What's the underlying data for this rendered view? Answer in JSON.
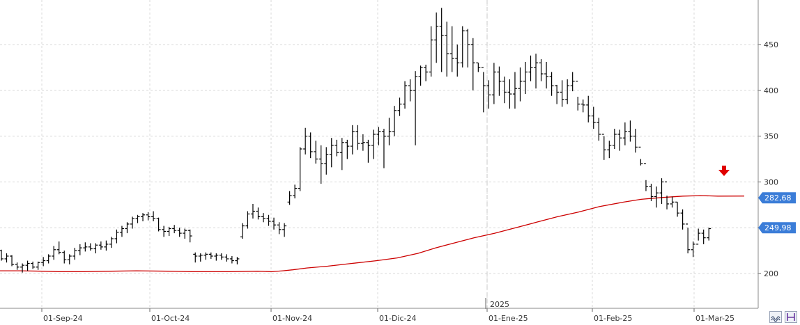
{
  "chart_data": {
    "type": "ohlc-bar",
    "title": "",
    "xlabel": "",
    "ylabel": "",
    "ylim": [
      176,
      500
    ],
    "y_ticks": [
      200,
      250,
      300,
      350,
      400,
      450
    ],
    "grid": true,
    "x_tick_labels": [
      "01-Sep-24",
      "01-Oct-24",
      "01-Nov-24",
      "01-Dic-24",
      "01-Ene-25",
      "01-Feb-25",
      "01-Mar-25"
    ],
    "year_label": "2025",
    "colors": {
      "bars": "#000000",
      "moving_average": "#cc0000",
      "price_tag": "#3b7dd8",
      "marker_arrow": "#e00000",
      "grid": "#d8d8d8"
    },
    "price_tags": [
      {
        "value": "282,68",
        "level": 282.68,
        "series": "moving_average"
      },
      {
        "value": "249,98",
        "level": 249.98,
        "series": "price"
      }
    ],
    "marker": {
      "type": "arrow-down",
      "near_index": 0
    },
    "series": [
      {
        "kind": "ohlc",
        "bars": [
          [
            225,
            226,
            214,
            216
          ],
          [
            216,
            222,
            212,
            219
          ],
          [
            219,
            220,
            208,
            210
          ],
          [
            210,
            212,
            204,
            207
          ],
          [
            207,
            211,
            201,
            209
          ],
          [
            209,
            214,
            203,
            211
          ],
          [
            211,
            213,
            205,
            207
          ],
          [
            207,
            213,
            204,
            212
          ],
          [
            212,
            218,
            208,
            214
          ],
          [
            214,
            221,
            211,
            219
          ],
          [
            219,
            230,
            215,
            226
          ],
          [
            226,
            235,
            221,
            223
          ],
          [
            223,
            225,
            211,
            215
          ],
          [
            215,
            221,
            210,
            219
          ],
          [
            219,
            228,
            215,
            225
          ],
          [
            225,
            232,
            220,
            228
          ],
          [
            228,
            234,
            224,
            229
          ],
          [
            229,
            233,
            225,
            227
          ],
          [
            227,
            233,
            222,
            231
          ],
          [
            231,
            235,
            226,
            229
          ],
          [
            229,
            236,
            225,
            232
          ],
          [
            232,
            240,
            228,
            238
          ],
          [
            238,
            248,
            233,
            245
          ],
          [
            245,
            252,
            240,
            249
          ],
          [
            249,
            256,
            244,
            254
          ],
          [
            254,
            262,
            249,
            260
          ],
          [
            260,
            264,
            255,
            262
          ],
          [
            262,
            266,
            257,
            264
          ],
          [
            264,
            267,
            258,
            262
          ],
          [
            262,
            268,
            257,
            260
          ],
          [
            260,
            261,
            246,
            248
          ],
          [
            248,
            252,
            240,
            246
          ],
          [
            246,
            251,
            241,
            249
          ],
          [
            249,
            253,
            244,
            247
          ],
          [
            247,
            250,
            240,
            244
          ],
          [
            244,
            249,
            238,
            247
          ],
          [
            247,
            248,
            234,
            241
          ],
          [
            221,
            223,
            212,
            219
          ],
          [
            219,
            222,
            213,
            220
          ],
          [
            220,
            223,
            215,
            221
          ],
          [
            221,
            223,
            216,
            219
          ],
          [
            219,
            222,
            214,
            220
          ],
          [
            220,
            222,
            215,
            218
          ],
          [
            218,
            221,
            213,
            216
          ],
          [
            216,
            219,
            211,
            214
          ],
          [
            214,
            218,
            210,
            216
          ],
          [
            240,
            255,
            238,
            252
          ],
          [
            252,
            268,
            249,
            265
          ],
          [
            265,
            276,
            260,
            268
          ],
          [
            268,
            272,
            259,
            262
          ],
          [
            262,
            266,
            256,
            260
          ],
          [
            260,
            264,
            252,
            257
          ],
          [
            257,
            261,
            248,
            253
          ],
          [
            253,
            256,
            243,
            248
          ],
          [
            248,
            255,
            240,
            252
          ],
          [
            278,
            290,
            275,
            285
          ],
          [
            285,
            297,
            282,
            293
          ],
          [
            293,
            338,
            290,
            336
          ],
          [
            336,
            359,
            330,
            350
          ],
          [
            350,
            354,
            326,
            333
          ],
          [
            333,
            345,
            320,
            325
          ],
          [
            325,
            340,
            298,
            320
          ],
          [
            320,
            338,
            308,
            330
          ],
          [
            330,
            348,
            316,
            340
          ],
          [
            340,
            346,
            328,
            332
          ],
          [
            332,
            348,
            313,
            343
          ],
          [
            343,
            346,
            325,
            339
          ],
          [
            339,
            362,
            330,
            355
          ],
          [
            355,
            362,
            335,
            342
          ],
          [
            342,
            352,
            334,
            343
          ],
          [
            343,
            346,
            321,
            340
          ],
          [
            340,
            357,
            325,
            352
          ],
          [
            352,
            360,
            340,
            355
          ],
          [
            355,
            358,
            315,
            350
          ],
          [
            350,
            370,
            340,
            355
          ],
          [
            355,
            383,
            350,
            378
          ],
          [
            378,
            392,
            372,
            385
          ],
          [
            385,
            410,
            380,
            405
          ],
          [
            405,
            412,
            388,
            400
          ],
          [
            400,
            421,
            340,
            415
          ],
          [
            415,
            427,
            405,
            425
          ],
          [
            425,
            428,
            410,
            420
          ],
          [
            420,
            470,
            415,
            455
          ],
          [
            455,
            485,
            430,
            470
          ],
          [
            470,
            490,
            420,
            460
          ],
          [
            460,
            475,
            415,
            440
          ],
          [
            440,
            470,
            420,
            435
          ],
          [
            435,
            450,
            415,
            430
          ],
          [
            430,
            470,
            425,
            465
          ],
          [
            465,
            467,
            425,
            450
          ],
          [
            450,
            457,
            400,
            430
          ],
          [
            430,
            430,
            420,
            425
          ],
          [
            425,
            420,
            376,
            405
          ],
          [
            405,
            411,
            380,
            395
          ],
          [
            395,
            430,
            385,
            420
          ],
          [
            420,
            426,
            394,
            410
          ],
          [
            410,
            415,
            386,
            398
          ],
          [
            398,
            412,
            380,
            396
          ],
          [
            396,
            420,
            380,
            402
          ],
          [
            402,
            425,
            388,
            410
          ],
          [
            410,
            431,
            396,
            420
          ],
          [
            420,
            438,
            410,
            425
          ],
          [
            425,
            440,
            402,
            430
          ],
          [
            430,
            434,
            410,
            418
          ],
          [
            418,
            431,
            402,
            415
          ],
          [
            415,
            420,
            394,
            405
          ],
          [
            405,
            406,
            385,
            398
          ],
          [
            398,
            411,
            382,
            390
          ],
          [
            390,
            412,
            385,
            405
          ],
          [
            405,
            420,
            399,
            410
          ],
          [
            410,
            393,
            378,
            385
          ],
          [
            385,
            390,
            376,
            384
          ],
          [
            384,
            394,
            365,
            372
          ],
          [
            372,
            382,
            358,
            365
          ],
          [
            365,
            370,
            345,
            352
          ],
          [
            352,
            350,
            324,
            335
          ],
          [
            335,
            345,
            326,
            340
          ],
          [
            340,
            358,
            336,
            352
          ],
          [
            352,
            357,
            334,
            348
          ],
          [
            348,
            365,
            340,
            355
          ],
          [
            355,
            367,
            344,
            350
          ],
          [
            350,
            358,
            332,
            338
          ],
          [
            338,
            325,
            318,
            320
          ],
          [
            320,
            302,
            290,
            295
          ],
          [
            295,
            298,
            279,
            284
          ],
          [
            284,
            295,
            272,
            288
          ],
          [
            288,
            304,
            276,
            300
          ],
          [
            300,
            285,
            270,
            276
          ],
          [
            276,
            284,
            272,
            278
          ],
          [
            278,
            278,
            262,
            266
          ],
          [
            266,
            270,
            248,
            254
          ],
          [
            254,
            250,
            222,
            226
          ],
          [
            226,
            235,
            218,
            232
          ],
          [
            232,
            249,
            236,
            244
          ],
          [
            244,
            248,
            232,
            239
          ],
          [
            239,
            250,
            236,
            249
          ]
        ]
      },
      {
        "kind": "line",
        "points": [
          [
            0,
            203
          ],
          [
            30,
            203
          ],
          [
            60,
            202.5
          ],
          [
            84,
            202
          ],
          [
            120,
            202
          ],
          [
            160,
            202.5
          ],
          [
            196,
            203
          ],
          [
            240,
            202.5
          ],
          [
            275,
            202
          ],
          [
            330,
            202
          ],
          [
            370,
            202.5
          ],
          [
            390,
            202
          ],
          [
            406,
            203
          ],
          [
            420,
            204
          ],
          [
            440,
            206
          ],
          [
            470,
            208
          ],
          [
            505,
            211
          ],
          [
            540,
            214
          ],
          [
            570,
            217
          ],
          [
            600,
            222
          ],
          [
            625,
            228
          ],
          [
            650,
            233
          ],
          [
            680,
            239
          ],
          [
            710,
            244
          ],
          [
            740,
            250
          ],
          [
            770,
            256
          ],
          [
            800,
            262
          ],
          [
            830,
            267
          ],
          [
            860,
            273
          ],
          [
            895,
            278
          ],
          [
            920,
            281
          ],
          [
            950,
            283
          ],
          [
            980,
            284.5
          ],
          [
            1005,
            285
          ],
          [
            1030,
            284.5
          ],
          [
            1068,
            284.6
          ]
        ]
      }
    ]
  }
}
